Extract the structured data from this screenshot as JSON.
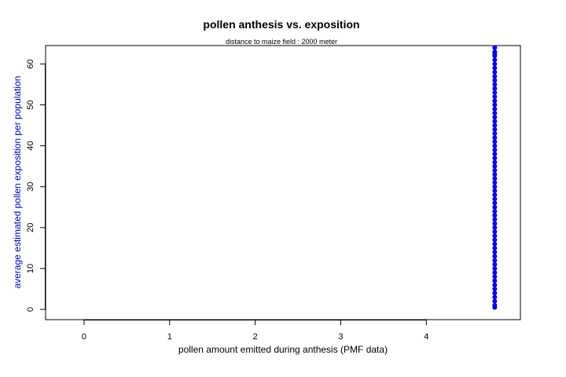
{
  "chart_data": {
    "type": "scatter",
    "title": "pollen anthesis vs. exposition",
    "subtitle": "distance to maize field :  2000 meter",
    "xlabel": "pollen amount emitted during anthesis (PMF data)",
    "ylabel": "average estimated pollen exposition per population",
    "xlim": [
      -0.45,
      5.1
    ],
    "ylim": [
      -2.5,
      64.5
    ],
    "x_ticks": [
      0,
      1,
      2,
      3,
      4
    ],
    "y_ticks": [
      0,
      10,
      20,
      30,
      40,
      50,
      60
    ],
    "grid": false,
    "legend": "none",
    "colors": {
      "points": "#0000FF",
      "ylabel": "#0000CC",
      "axis": "#000000"
    },
    "series": [
      {
        "x": [
          4.8,
          4.8,
          4.8,
          4.8,
          4.8,
          4.8,
          4.8,
          4.8,
          4.8,
          4.8,
          4.8,
          4.8,
          4.8,
          4.8,
          4.8,
          4.8,
          4.8,
          4.8,
          4.8,
          4.8,
          4.8,
          4.8,
          4.8,
          4.8,
          4.8,
          4.8,
          4.8,
          4.8,
          4.8,
          4.8,
          4.8,
          4.8,
          4.8,
          4.8,
          4.8,
          4.8,
          4.8,
          4.8,
          4.8,
          4.8,
          4.8,
          4.8,
          4.8,
          4.8,
          4.8,
          4.8,
          4.8,
          4.8,
          4.8,
          4.8,
          4.8,
          4.8,
          4.8,
          4.8,
          4.8,
          4.8,
          4.8,
          4.8,
          4.8,
          4.8,
          4.8,
          4.8,
          4.8,
          4.8,
          4.8,
          4.8
        ],
        "y": [
          0.5,
          1.0,
          2.0,
          3.0,
          4.0,
          5.0,
          6.0,
          7.0,
          8.0,
          9.0,
          10.0,
          11.0,
          12.0,
          13.0,
          14.0,
          15.0,
          16.0,
          17.0,
          18.0,
          19.0,
          20.0,
          21.0,
          22.0,
          23.0,
          24.0,
          25.0,
          26.0,
          27.0,
          28.0,
          29.0,
          30.0,
          31.0,
          32.0,
          33.0,
          34.0,
          35.0,
          36.0,
          37.0,
          38.0,
          39.0,
          40.0,
          41.0,
          42.0,
          43.0,
          44.0,
          45.0,
          46.0,
          47.0,
          48.0,
          49.0,
          50.0,
          51.0,
          52.0,
          53.0,
          54.0,
          55.0,
          56.0,
          57.0,
          58.0,
          59.0,
          60.0,
          61.0,
          62.0,
          62.5,
          63.0,
          64.0
        ]
      }
    ]
  }
}
